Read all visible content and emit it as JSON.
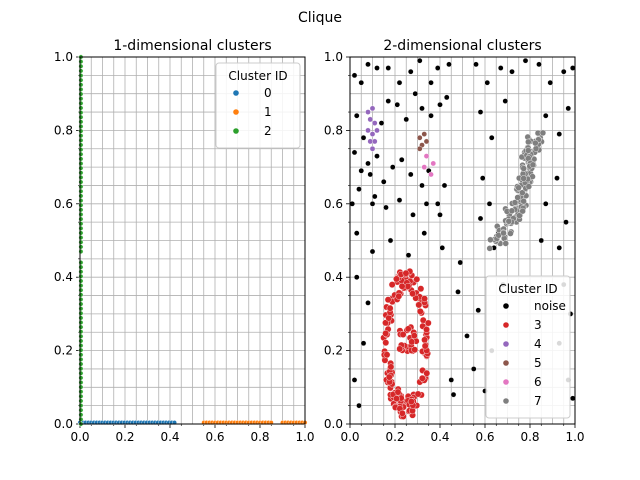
{
  "figure": {
    "suptitle": "Clique"
  },
  "chart_data": [
    {
      "type": "scatter",
      "title": "1-dimensional clusters",
      "xlim": [
        0,
        1
      ],
      "ylim": [
        0,
        1
      ],
      "xticks": [
        "0.0",
        "0.2",
        "0.4",
        "0.6",
        "0.8",
        "1.0"
      ],
      "yticks": [
        "0.0",
        "0.2",
        "0.4",
        "0.6",
        "0.8",
        "1.0"
      ],
      "grid": true,
      "legend": {
        "title": "Cluster ID",
        "placement": "top-right"
      },
      "series": [
        {
          "name": "0",
          "color": "#1f77b4",
          "segments": [
            {
              "axis": "x",
              "from": 0.0,
              "to": 0.42
            }
          ]
        },
        {
          "name": "1",
          "color": "#ff7f0e",
          "segments": [
            {
              "axis": "x",
              "from": 0.55,
              "to": 0.85
            },
            {
              "axis": "x",
              "from": 0.9,
              "to": 1.0
            }
          ]
        },
        {
          "name": "2",
          "color": "#2ca02c",
          "segments": [
            {
              "axis": "y",
              "from": 0.0,
              "to": 0.44
            },
            {
              "axis": "y",
              "from": 0.47,
              "to": 1.0
            }
          ]
        }
      ]
    },
    {
      "type": "scatter",
      "title": "2-dimensional clusters",
      "xlim": [
        0,
        1
      ],
      "ylim": [
        0,
        1
      ],
      "xticks": [
        "0.0",
        "0.2",
        "0.4",
        "0.6",
        "0.8",
        "1.0"
      ],
      "yticks": [
        "0.0",
        "0.2",
        "0.4",
        "0.6",
        "0.8",
        "1.0"
      ],
      "grid": true,
      "legend": {
        "title": "Cluster ID",
        "placement": "bottom-right"
      },
      "series": [
        {
          "name": "noise",
          "color": "#000000",
          "points": [
            [
              0.02,
              0.95
            ],
            [
              0.05,
              0.93
            ],
            [
              0.08,
              0.98
            ],
            [
              0.12,
              0.97
            ],
            [
              0.17,
              0.97
            ],
            [
              0.22,
              0.93
            ],
            [
              0.27,
              0.96
            ],
            [
              0.31,
              0.99
            ],
            [
              0.36,
              0.93
            ],
            [
              0.39,
              0.97
            ],
            [
              0.44,
              0.98
            ],
            [
              0.03,
              0.84
            ],
            [
              0.06,
              0.78
            ],
            [
              0.09,
              0.68
            ],
            [
              0.12,
              0.73
            ],
            [
              0.14,
              0.82
            ],
            [
              0.17,
              0.88
            ],
            [
              0.21,
              0.87
            ],
            [
              0.25,
              0.83
            ],
            [
              0.29,
              0.9
            ],
            [
              0.32,
              0.86
            ],
            [
              0.36,
              0.84
            ],
            [
              0.4,
              0.87
            ],
            [
              0.43,
              0.89
            ],
            [
              0.02,
              0.74
            ],
            [
              0.05,
              0.69
            ],
            [
              0.08,
              0.71
            ],
            [
              0.11,
              0.62
            ],
            [
              0.15,
              0.66
            ],
            [
              0.19,
              0.7
            ],
            [
              0.23,
              0.72
            ],
            [
              0.27,
              0.68
            ],
            [
              0.32,
              0.65
            ],
            [
              0.35,
              0.69
            ],
            [
              0.39,
              0.6
            ],
            [
              0.42,
              0.65
            ],
            [
              0.04,
              0.64
            ],
            [
              0.1,
              0.6
            ],
            [
              0.16,
              0.59
            ],
            [
              0.22,
              0.61
            ],
            [
              0.28,
              0.57
            ],
            [
              0.34,
              0.6
            ],
            [
              0.4,
              0.57
            ],
            [
              0.01,
              0.6
            ],
            [
              0.56,
              0.98
            ],
            [
              0.61,
              0.93
            ],
            [
              0.67,
              0.97
            ],
            [
              0.72,
              0.96
            ],
            [
              0.78,
              0.99
            ],
            [
              0.84,
              0.98
            ],
            [
              0.89,
              0.93
            ],
            [
              0.95,
              0.96
            ],
            [
              0.99,
              0.97
            ],
            [
              0.58,
              0.85
            ],
            [
              0.63,
              0.78
            ],
            [
              0.69,
              0.88
            ],
            [
              0.87,
              0.84
            ],
            [
              0.93,
              0.79
            ],
            [
              0.97,
              0.86
            ],
            [
              0.59,
              0.67
            ],
            [
              0.62,
              0.6
            ],
            [
              0.66,
              0.52
            ],
            [
              0.87,
              0.6
            ],
            [
              0.92,
              0.67
            ],
            [
              0.96,
              0.55
            ],
            [
              0.58,
              0.56
            ],
            [
              0.64,
              0.48
            ],
            [
              0.85,
              0.5
            ],
            [
              0.93,
              0.48
            ],
            [
              0.03,
              0.52
            ],
            [
              0.1,
              0.47
            ],
            [
              0.18,
              0.5
            ],
            [
              0.26,
              0.46
            ],
            [
              0.33,
              0.52
            ],
            [
              0.41,
              0.48
            ],
            [
              0.03,
              0.4
            ],
            [
              0.08,
              0.33
            ],
            [
              0.48,
              0.36
            ],
            [
              0.52,
              0.24
            ],
            [
              0.57,
              0.31
            ],
            [
              0.63,
              0.2
            ],
            [
              0.68,
              0.38
            ],
            [
              0.55,
              0.15
            ],
            [
              0.6,
              0.09
            ],
            [
              0.46,
              0.08
            ],
            [
              0.02,
              0.12
            ],
            [
              0.06,
              0.22
            ],
            [
              0.04,
              0.05
            ],
            [
              0.95,
              0.38
            ],
            [
              0.98,
              0.3
            ],
            [
              0.97,
              0.12
            ],
            [
              0.93,
              0.22
            ],
            [
              0.99,
              0.07
            ],
            [
              0.49,
              0.44
            ],
            [
              0.45,
              0.12
            ]
          ]
        },
        {
          "name": "3",
          "color": "#d62728",
          "shape": "ring",
          "center": [
            0.25,
            0.22
          ],
          "radius": [
            0.1,
            0.2
          ],
          "inner_center": [
            0.26,
            0.23
          ]
        },
        {
          "name": "4",
          "color": "#9467bd",
          "points": [
            [
              0.08,
              0.85
            ],
            [
              0.1,
              0.86
            ],
            [
              0.09,
              0.83
            ],
            [
              0.11,
              0.82
            ],
            [
              0.08,
              0.8
            ],
            [
              0.1,
              0.79
            ],
            [
              0.12,
              0.8
            ],
            [
              0.09,
              0.77
            ],
            [
              0.11,
              0.77
            ],
            [
              0.1,
              0.75
            ]
          ]
        },
        {
          "name": "5",
          "color": "#8c564b",
          "points": [
            [
              0.31,
              0.78
            ],
            [
              0.33,
              0.79
            ],
            [
              0.32,
              0.76
            ],
            [
              0.34,
              0.77
            ],
            [
              0.31,
              0.75
            ]
          ]
        },
        {
          "name": "6",
          "color": "#e377c2",
          "points": [
            [
              0.34,
              0.73
            ],
            [
              0.37,
              0.71
            ],
            [
              0.33,
              0.7
            ],
            [
              0.36,
              0.68
            ]
          ]
        },
        {
          "name": "7",
          "color": "#7f7f7f",
          "shape": "band",
          "from": [
            0.65,
            0.5
          ],
          "to": [
            0.86,
            0.78
          ],
          "width": 0.06
        }
      ]
    }
  ]
}
